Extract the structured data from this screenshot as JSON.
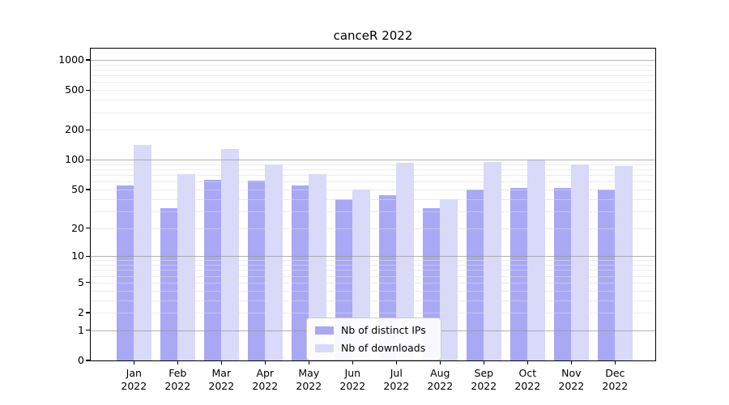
{
  "figure": {
    "title": "canceR 2022"
  },
  "chart_data": {
    "type": "bar",
    "title": "canceR 2022",
    "categories": [
      "Jan",
      "Feb",
      "Mar",
      "Apr",
      "May",
      "Jun",
      "Jul",
      "Aug",
      "Sep",
      "Oct",
      "Nov",
      "Dec"
    ],
    "year_label": "2022",
    "series": [
      {
        "name": "Nb of distinct IPs",
        "color": "#a8a8f4",
        "values": [
          55,
          32,
          63,
          62,
          55,
          40,
          44,
          32,
          50,
          52,
          52,
          50
        ]
      },
      {
        "name": "Nb of downloads",
        "color": "#d9d9f9",
        "values": [
          140,
          72,
          129,
          89,
          72,
          50,
          93,
          40,
          95,
          101,
          90,
          86
        ]
      }
    ],
    "xlabel": "",
    "ylabel": "",
    "y_ticks": [
      0,
      1,
      2,
      5,
      10,
      20,
      50,
      100,
      200,
      500,
      1000
    ],
    "y_scale": "log1p",
    "ylim": [
      0,
      1297
    ],
    "grid": true,
    "legend_position": "inside-bottom-center"
  },
  "colors": {
    "major_grid": "rgba(150,150,150,0.72)",
    "minor_grid": "rgba(222,222,222,0.58)",
    "frame": "#000000",
    "text": "#000000",
    "legend_border": "#cccccc",
    "legend_bg": "#ffffff"
  }
}
